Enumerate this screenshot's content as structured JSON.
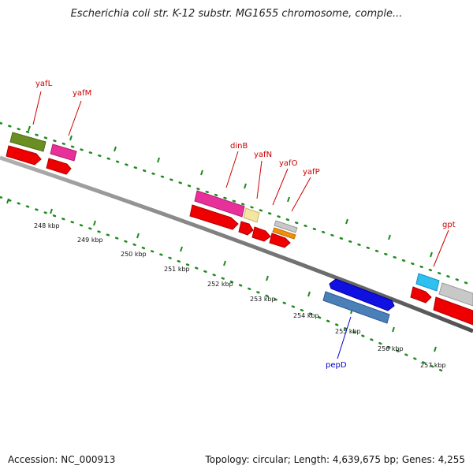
{
  "title": "Escherichia coli str. K-12 substr. MG1655 chromosome, comple...",
  "footer": {
    "accession": "Accession: NC_000913",
    "summary": "Topology: circular; Length: 4,639,675 bp; Genes: 4,255"
  },
  "colors": {
    "backbone": "#8a8a8a",
    "tick_dots": "#1f8a1f",
    "forward_label": "#cc0000",
    "reverse_label": "#0000cc",
    "cds_red": "#ee0000"
  },
  "genes": [
    {
      "name": "yafL",
      "strand": "forward",
      "label_color": "#cc0000",
      "color": "#6b8e23",
      "icon": "gene-bar"
    },
    {
      "name": "yafM",
      "strand": "forward",
      "label_color": "#cc0000",
      "color": "#e8309a",
      "icon": "gene-bar"
    },
    {
      "name": "dinB",
      "strand": "forward",
      "label_color": "#cc0000",
      "color": "#e8309a",
      "icon": "gene-bar"
    },
    {
      "name": "yafN",
      "strand": "forward",
      "label_color": "#cc0000",
      "color": "#f2e6a0",
      "icon": "gene-bar"
    },
    {
      "name": "yafO",
      "strand": "forward",
      "label_color": "#cc0000",
      "color": "#c8c8c8",
      "icon": "gene-bar"
    },
    {
      "name": "yafP",
      "strand": "forward",
      "label_color": "#cc0000",
      "color": "#f0900a",
      "icon": "gene-bar"
    },
    {
      "name": "gpt",
      "strand": "forward",
      "label_color": "#cc0000",
      "color": "#2ec0f0",
      "icon": "gene-bar"
    },
    {
      "name": "pepD",
      "strand": "reverse",
      "label_color": "#0000cc",
      "color": "#1010e0",
      "icon": "gene-bar"
    }
  ],
  "ticks": [
    "248 kbp",
    "249 kbp",
    "250 kbp",
    "251 kbp",
    "252 kbp",
    "253 kbp",
    "254 kbp",
    "255 kbp",
    "256 kbp",
    "257 kbp"
  ]
}
